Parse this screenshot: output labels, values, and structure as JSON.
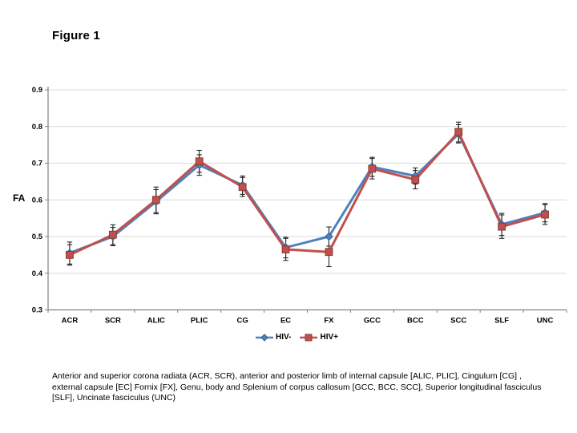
{
  "page": {
    "title": "Figure 1"
  },
  "chart_data": {
    "type": "line",
    "title": "",
    "xlabel": "",
    "ylabel": "FA",
    "ylim": [
      0.3,
      0.9
    ],
    "ytick_step": 0.1,
    "grid": true,
    "legend_position": "bottom",
    "categories": [
      "ACR",
      "SCR",
      "ALIC",
      "PLIC",
      "CG",
      "EC",
      "FX",
      "GCC",
      "BCC",
      "SCC",
      "SLF",
      "UNC"
    ],
    "series": [
      {
        "name": "HIV-",
        "color": "#4F81BD",
        "marker": "diamond",
        "values": [
          0.455,
          0.5,
          0.595,
          0.695,
          0.64,
          0.47,
          0.5,
          0.69,
          0.665,
          0.78,
          0.533,
          0.565
        ],
        "errors": [
          0.03,
          0.025,
          0.033,
          0.028,
          0.025,
          0.028,
          0.026,
          0.026,
          0.022,
          0.025,
          0.03,
          0.025
        ]
      },
      {
        "name": "HIV+",
        "color": "#C0504D",
        "marker": "square",
        "values": [
          0.45,
          0.505,
          0.6,
          0.705,
          0.635,
          0.465,
          0.458,
          0.685,
          0.655,
          0.785,
          0.527,
          0.56
        ],
        "errors": [
          0.028,
          0.027,
          0.035,
          0.03,
          0.026,
          0.03,
          0.04,
          0.028,
          0.025,
          0.027,
          0.032,
          0.027
        ]
      }
    ],
    "colors": {
      "gridline": "#d9d9d9",
      "axis": "#808080",
      "error_bar": "#262626",
      "tick_label": "#000000"
    }
  },
  "caption": "Anterior and superior corona radiata (ACR, SCR), anterior and posterior limb of internal capsule [ALIC, PLIC], Cingulum [CG] , external capsule [EC] Fornix [FX], Genu, body and Splenium of corpus callosum [GCC, BCC, SCC], Superior longitudinal fasciculus [SLF], Uncinate fasciculus (UNC)"
}
